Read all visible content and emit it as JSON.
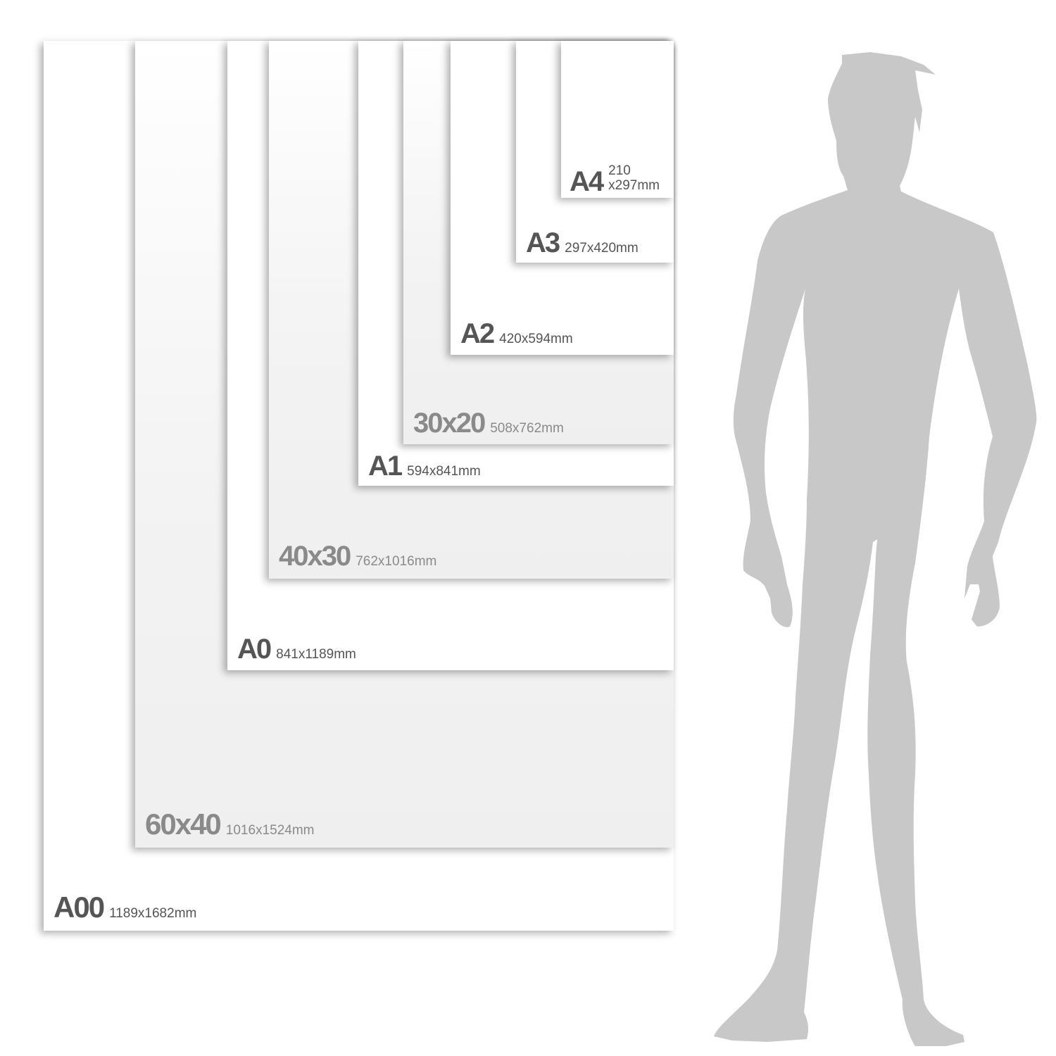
{
  "sheets": [
    {
      "id": "a00",
      "name": "A00",
      "dims": "1189x1682mm"
    },
    {
      "id": "60x40",
      "name": "60x40",
      "dims": "1016x1524mm"
    },
    {
      "id": "a0",
      "name": "A0",
      "dims": "841x1189mm"
    },
    {
      "id": "40x30",
      "name": "40x30",
      "dims": "762x1016mm"
    },
    {
      "id": "a1",
      "name": "A1",
      "dims": "594x841mm"
    },
    {
      "id": "30x20",
      "name": "30x20",
      "dims": "508x762mm"
    },
    {
      "id": "a2",
      "name": "A2",
      "dims": "420x594mm"
    },
    {
      "id": "a3",
      "name": "A3",
      "dims": "297x420mm"
    },
    {
      "id": "a4",
      "name": "A4",
      "dims_line1": "210",
      "dims_line2": "x297mm"
    }
  ],
  "colors": {
    "label_dark": "#555555",
    "label_light": "#8a8a8a",
    "silhouette": "#c8c8c8"
  }
}
